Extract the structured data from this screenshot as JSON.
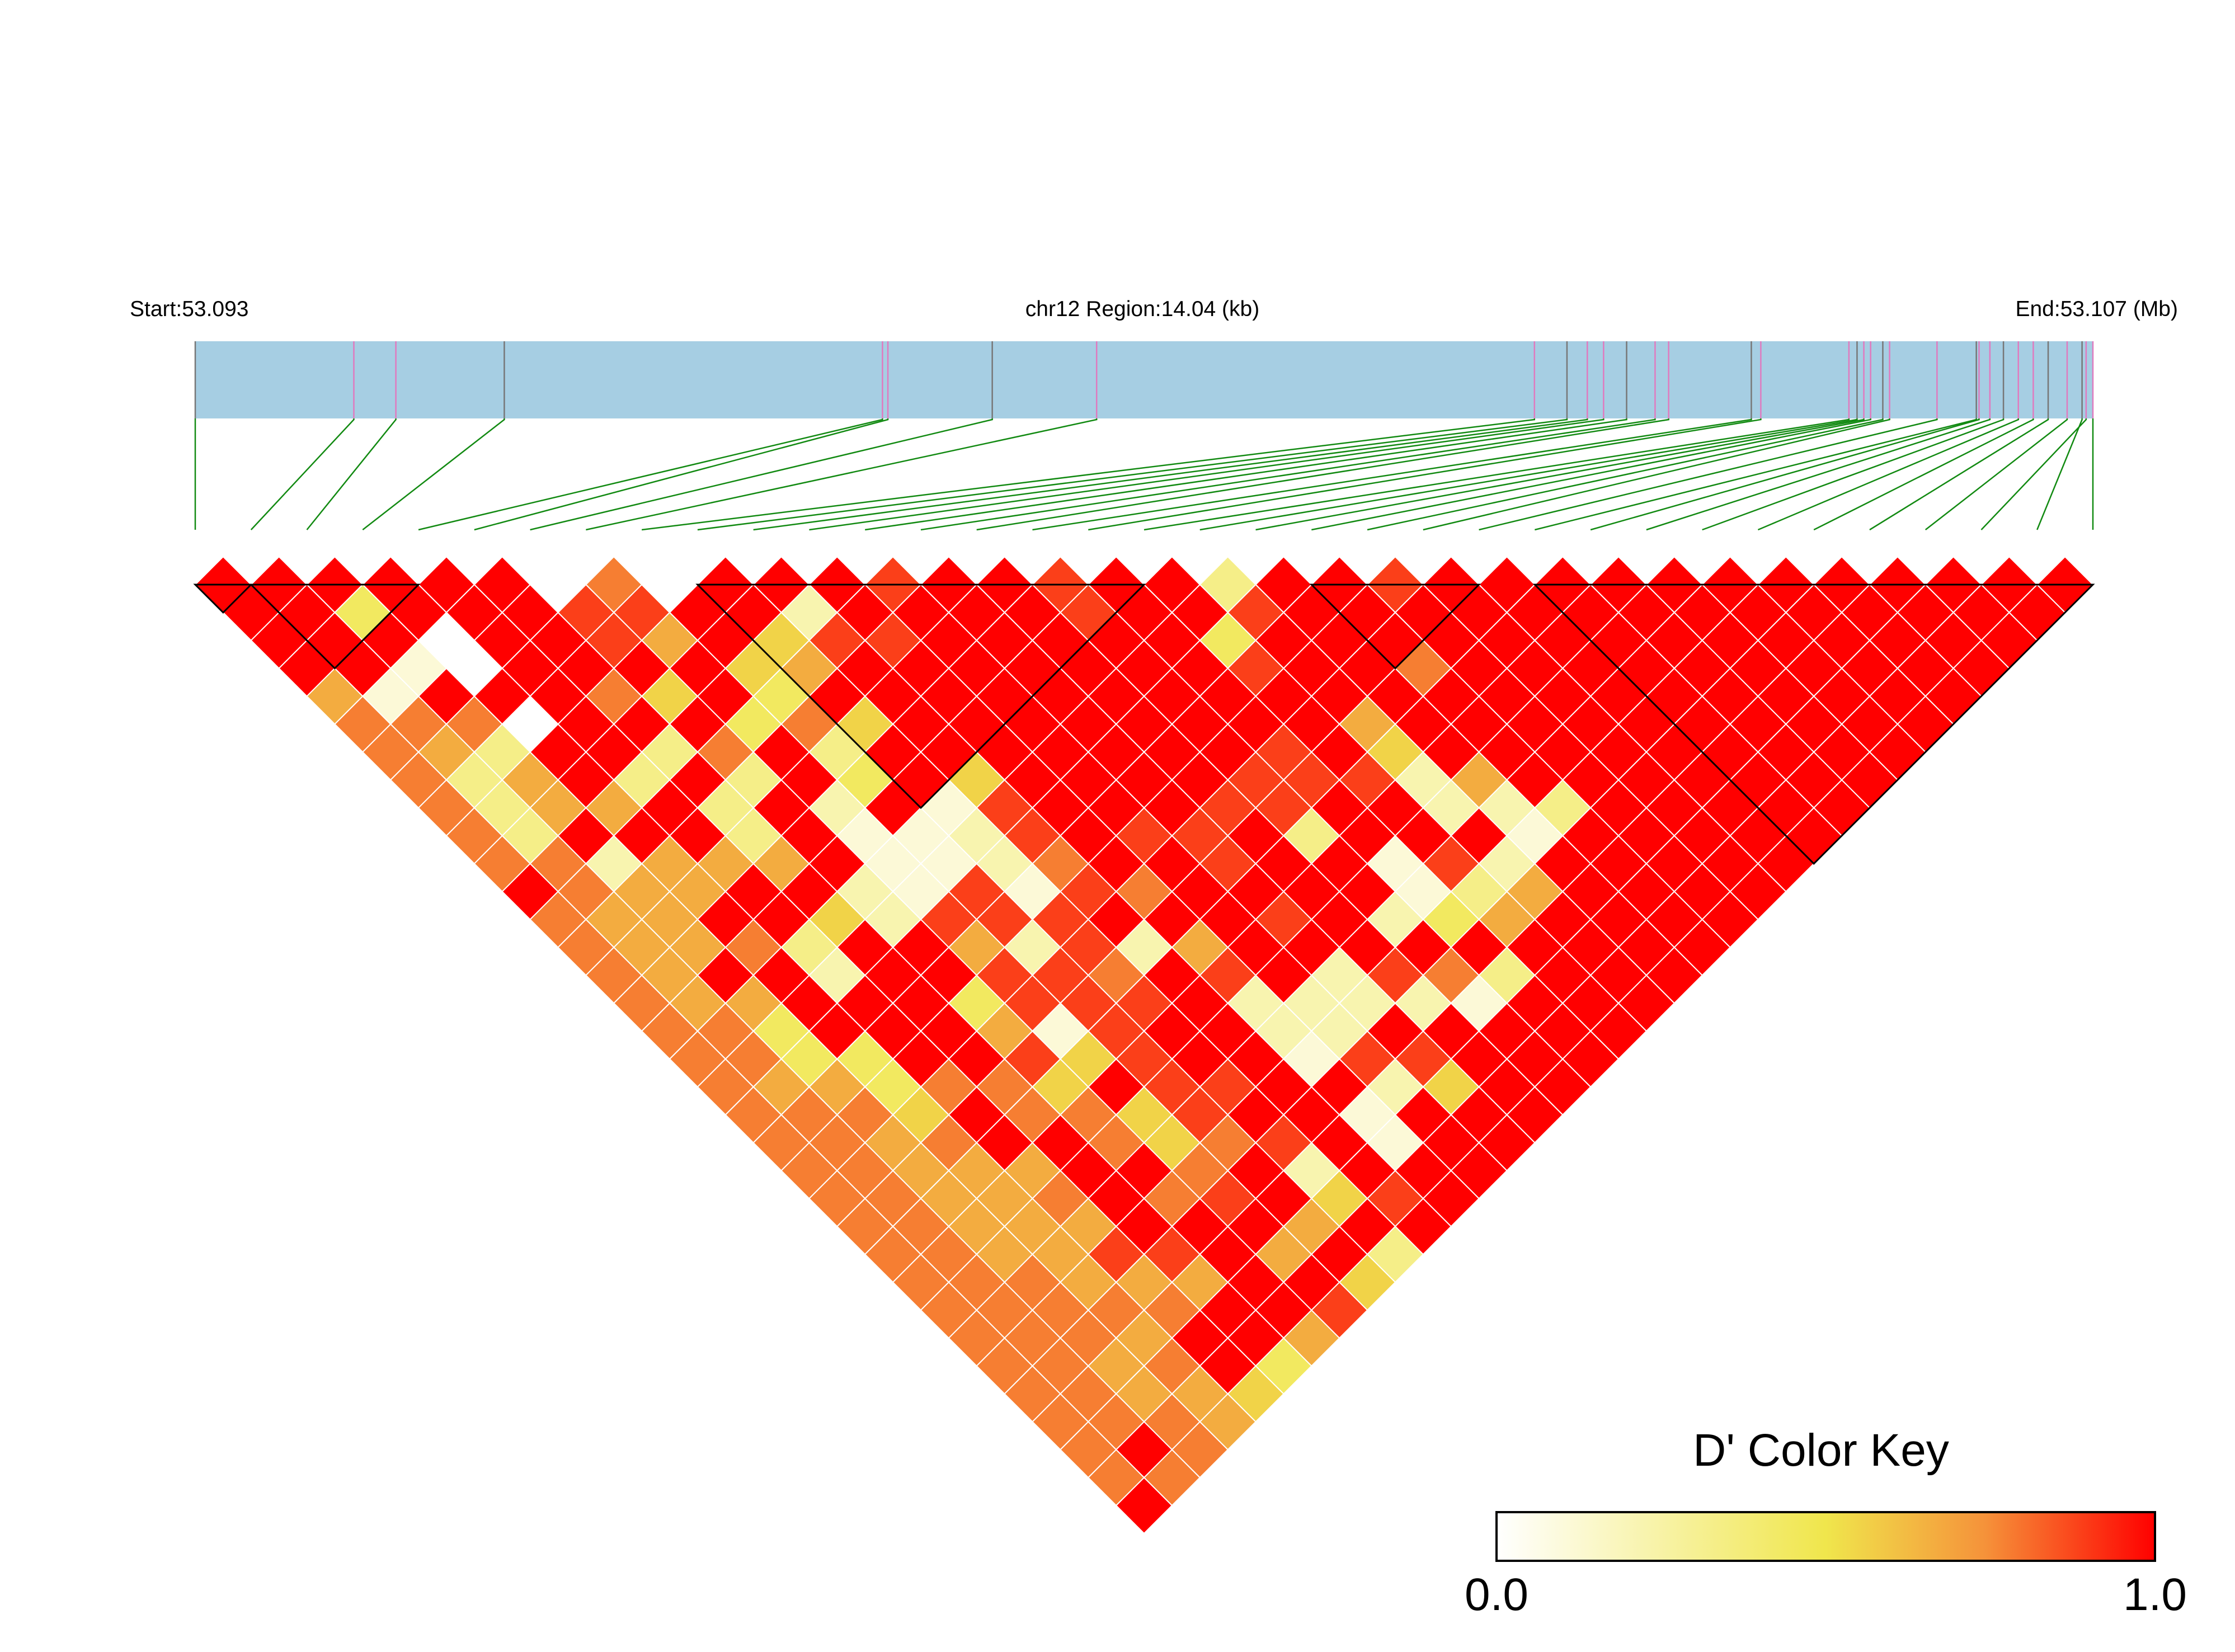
{
  "header": {
    "start_label": "Start:53.093",
    "region_label": "chr12 Region:14.04 (kb)",
    "end_label": "End:53.107 (Mb)"
  },
  "colors": {
    "gene_bar": "#A6CEE3",
    "connector": "#128A12",
    "gradient": [
      "#FFFFFF",
      "#F0E64C",
      "#F5933A",
      "#FF0000"
    ]
  },
  "chart_data": {
    "type": "heatmap",
    "description_of_values": "pairwise D' between SNPs (lower-triangular, upper row = adjacent pairs)",
    "color_key": {
      "title": "D' Color Key",
      "min_label": "0.0",
      "max_label": "1.0",
      "range": [
        0,
        1
      ]
    },
    "region": {
      "chromosome": "chr12",
      "start_mb": 53.093,
      "end_mb": 53.107,
      "length_kb": 14.04
    },
    "n_snps": 35,
    "snp_positions_mb": [
      53.093,
      53.09417,
      53.09448,
      53.09528,
      53.09807,
      53.09811,
      53.09888,
      53.09965,
      53.10288,
      53.10312,
      53.10327,
      53.10339,
      53.10356,
      53.10377,
      53.10387,
      53.10448,
      53.10455,
      53.1052,
      53.10526,
      53.10531,
      53.10536,
      53.10545,
      53.1055,
      53.10585,
      53.10614,
      53.10616,
      53.10624,
      53.10634,
      53.10645,
      53.10656,
      53.10667,
      53.10681,
      53.10695,
      53.10692,
      53.107
    ],
    "haplotype_blocks": [
      [
        1,
        2
      ],
      [
        2,
        5
      ],
      [
        10,
        18
      ],
      [
        21,
        24
      ],
      [
        25,
        35
      ]
    ],
    "fill_rows": [
      "9999990709998998993998999999999999",
      "994999889929999899899999999999999",
      "99909986958899999499999999999999",
      "9910999956999999989979999999999",
      "619997594999999999999999999999",
      "77709994759999999969999999999",
      "7639937939999999895999999999",
      "736939394959999888269999999",
      "73669392918999889922399999",
      "7399939112898893999199999",
      "772666911279989918299999",
      "97669921818799991369999",
      "7669952888999892469999",
      "7667399628269999999999",
      "769929988798928739993",
      "76699948889222219999",
      "7749996189922999999",
      "774499858991889999",
      "76647759889925999",
      "7775977589919999",
      "776799757891999",
      "77666997929999",
      "7766797895899",
      "776669996999",
      "77668896939",
      "7776669959",
      "777779989",
      "77769969",
      "7767946",
      "776659",
      "77769",
      "7979",
      "779",
      "90",
      "9"
    ]
  }
}
